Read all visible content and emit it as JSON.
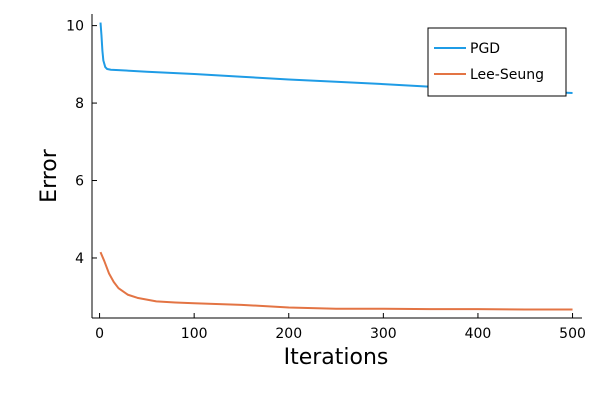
{
  "chart_data": {
    "type": "line",
    "xlabel": "Iterations",
    "ylabel": "Error",
    "xlim": [
      -8,
      510
    ],
    "ylim": [
      2.45,
      10.3
    ],
    "xticks": [
      0,
      100,
      200,
      300,
      400,
      500
    ],
    "yticks": [
      4,
      6,
      8,
      10
    ],
    "grid": false,
    "legend_position": "top-right",
    "series": [
      {
        "name": "PGD",
        "color": "#1f9ce6",
        "points": [
          [
            1,
            10.08
          ],
          [
            2,
            9.75
          ],
          [
            3,
            9.35
          ],
          [
            4,
            9.1
          ],
          [
            6,
            8.93
          ],
          [
            8,
            8.88
          ],
          [
            12,
            8.86
          ],
          [
            20,
            8.85
          ],
          [
            50,
            8.81
          ],
          [
            100,
            8.75
          ],
          [
            150,
            8.68
          ],
          [
            200,
            8.61
          ],
          [
            250,
            8.55
          ],
          [
            300,
            8.49
          ],
          [
            350,
            8.42
          ],
          [
            400,
            8.36
          ],
          [
            450,
            8.31
          ],
          [
            500,
            8.26
          ]
        ]
      },
      {
        "name": "Lee-Seung",
        "color": "#e37444",
        "points": [
          [
            1,
            4.15
          ],
          [
            5,
            3.92
          ],
          [
            10,
            3.6
          ],
          [
            15,
            3.38
          ],
          [
            20,
            3.22
          ],
          [
            30,
            3.05
          ],
          [
            40,
            2.97
          ],
          [
            60,
            2.88
          ],
          [
            80,
            2.85
          ],
          [
            100,
            2.83
          ],
          [
            150,
            2.79
          ],
          [
            200,
            2.72
          ],
          [
            250,
            2.69
          ],
          [
            300,
            2.69
          ],
          [
            350,
            2.68
          ],
          [
            400,
            2.68
          ],
          [
            450,
            2.67
          ],
          [
            500,
            2.67
          ]
        ]
      }
    ]
  }
}
